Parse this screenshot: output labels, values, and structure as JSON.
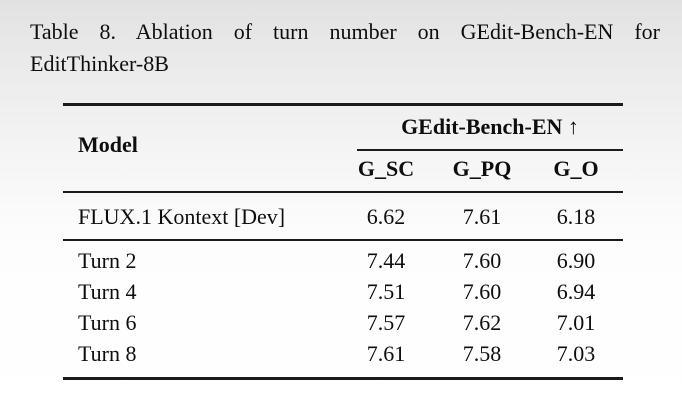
{
  "caption": {
    "line1": "Table 8. Ablation of turn number on GEdit-Bench-EN for",
    "line2": "EditThinker-8B"
  },
  "table": {
    "model_header": "Model",
    "group_header": "GEdit-Bench-EN ↑",
    "metric_columns": [
      "G_SC",
      "G_PQ",
      "G_O"
    ],
    "rows": [
      {
        "model": "FLUX.1 Kontext [Dev]",
        "g_sc": "6.62",
        "g_pq": "7.61",
        "g_o": "6.18"
      },
      {
        "model": "Turn 2",
        "g_sc": "7.44",
        "g_pq": "7.60",
        "g_o": "6.90"
      },
      {
        "model": "Turn 4",
        "g_sc": "7.51",
        "g_pq": "7.60",
        "g_o": "6.94"
      },
      {
        "model": "Turn 6",
        "g_sc": "7.57",
        "g_pq": "7.62",
        "g_o": "7.01"
      },
      {
        "model": "Turn 8",
        "g_sc": "7.61",
        "g_pq": "7.58",
        "g_o": "7.03"
      }
    ]
  },
  "colors": {
    "text": "#0e0e0e",
    "rule": "#1b1b1b",
    "background_top": "#e2e2e2",
    "background_bottom": "#ffffff"
  }
}
